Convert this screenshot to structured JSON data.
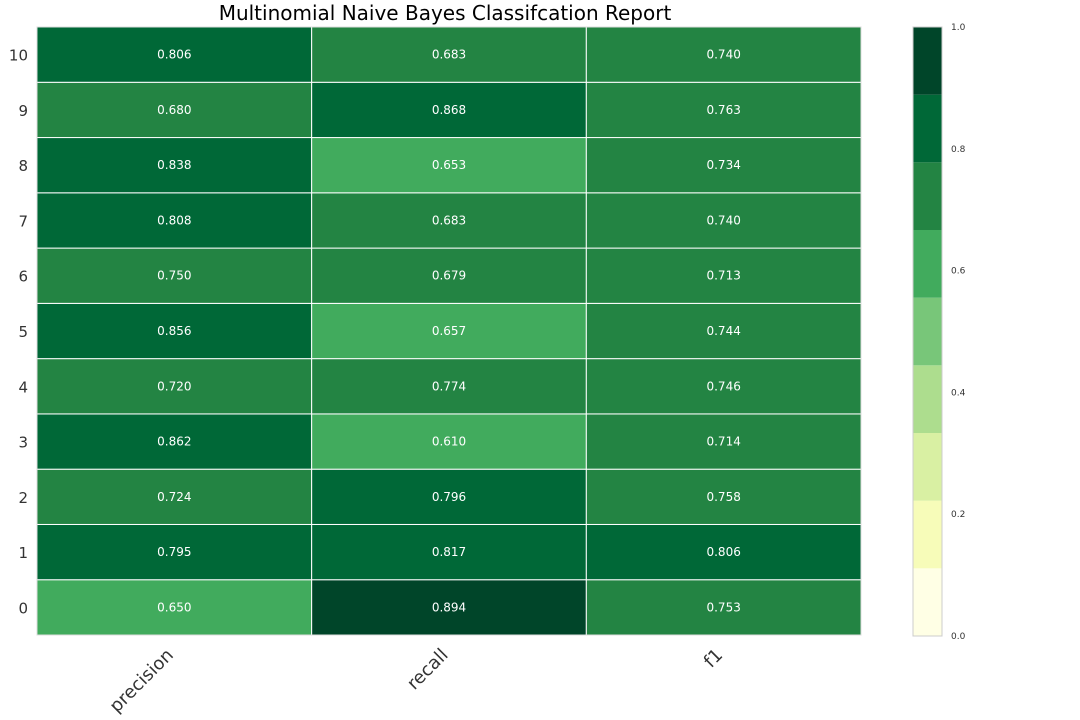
{
  "chart_data": {
    "type": "heatmap",
    "title": "Multinomial Naive Bayes Classifcation Report",
    "columns": [
      "precision",
      "recall",
      "f1"
    ],
    "rows": [
      "0",
      "1",
      "2",
      "3",
      "4",
      "5",
      "6",
      "7",
      "8",
      "9",
      "10"
    ],
    "values": [
      [
        "0.650",
        "0.894",
        "0.753"
      ],
      [
        "0.795",
        "0.817",
        "0.806"
      ],
      [
        "0.724",
        "0.796",
        "0.758"
      ],
      [
        "0.862",
        "0.610",
        "0.714"
      ],
      [
        "0.720",
        "0.774",
        "0.746"
      ],
      [
        "0.856",
        "0.657",
        "0.744"
      ],
      [
        "0.750",
        "0.679",
        "0.713"
      ],
      [
        "0.808",
        "0.683",
        "0.740"
      ],
      [
        "0.838",
        "0.653",
        "0.734"
      ],
      [
        "0.680",
        "0.868",
        "0.763"
      ],
      [
        "0.806",
        "0.683",
        "0.740"
      ]
    ],
    "colorbar": {
      "range": [
        0.0,
        1.0
      ],
      "ticks": [
        "0.0",
        "0.2",
        "0.4",
        "0.6",
        "0.8",
        "1.0"
      ],
      "colors": [
        "#ffffe5",
        "#f7fcb9",
        "#d9f0a3",
        "#addd8e",
        "#78c679",
        "#41ab5d",
        "#238443",
        "#006837",
        "#004529"
      ]
    },
    "grid": false
  }
}
